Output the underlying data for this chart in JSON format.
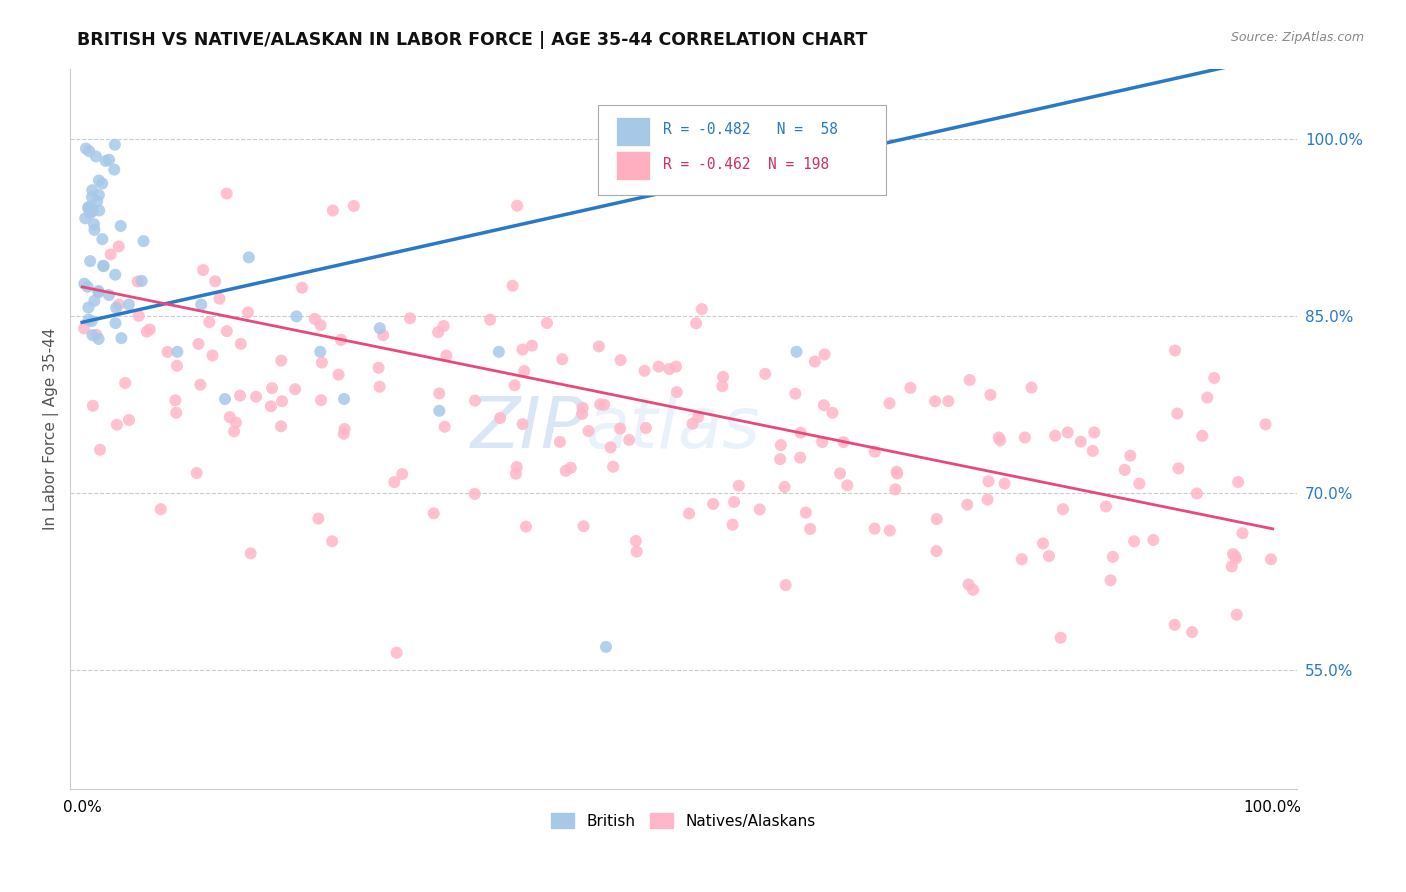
{
  "title": "BRITISH VS NATIVE/ALASKAN IN LABOR FORCE | AGE 35-44 CORRELATION CHART",
  "source_text": "Source: ZipAtlas.com",
  "ylabel": "In Labor Force | Age 35-44",
  "xlim": [
    0.0,
    1.0
  ],
  "ylim": [
    0.45,
    1.06
  ],
  "yticks": [
    0.55,
    0.7,
    0.85,
    1.0
  ],
  "ytick_labels": [
    "55.0%",
    "70.0%",
    "85.0%",
    "100.0%"
  ],
  "british_R": -0.482,
  "british_N": 58,
  "native_R": -0.462,
  "native_N": 198,
  "british_color": "#a8c8e8",
  "native_color": "#ffb6c8",
  "british_line_color": "#2979c8",
  "native_line_color": "#e8487a",
  "watermark_color": "#c8d8f0",
  "watermark_text": "ZIPatlas",
  "legend_brit_color": "#a8c8e8",
  "legend_nat_color": "#ffb0c0",
  "legend_brit_text_color": "#2979c8",
  "legend_nat_text_color": "#d03060",
  "right_tick_color": "#2979c8",
  "ylabel_color": "#555555",
  "title_color": "#111111",
  "source_color": "#888888"
}
